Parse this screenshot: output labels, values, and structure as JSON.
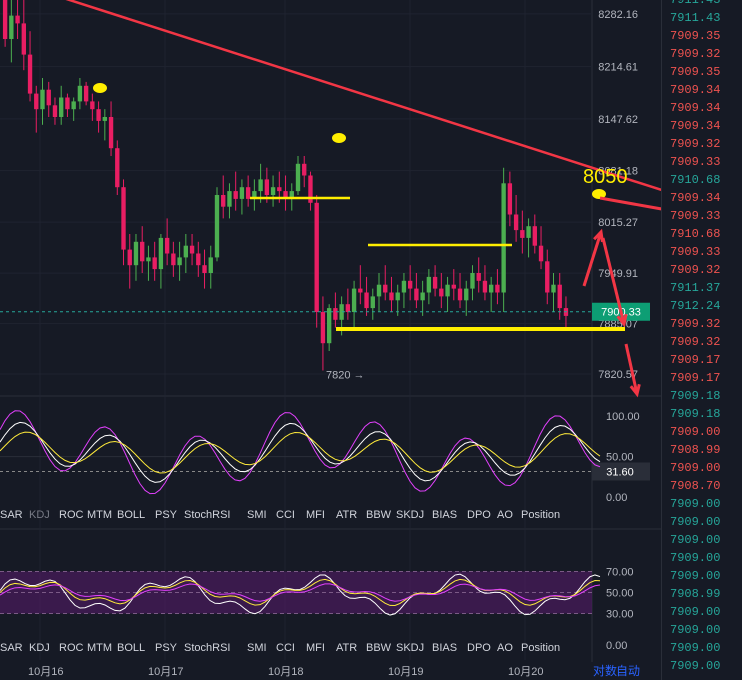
{
  "chart_data": {
    "type": "candlestick",
    "main": {
      "price_ticks": [
        "8282.16",
        "8214.61",
        "8147.62",
        "8081.18",
        "8015.27",
        "7949.91",
        "7885.07",
        "7820.57"
      ],
      "current_price_label": "7900.33",
      "low_marker_label": "7820 →",
      "annotation_text": "8050",
      "candles": [
        [
          8300,
          8320,
          8240,
          8250
        ],
        [
          8250,
          8300,
          8220,
          8280
        ],
        [
          8280,
          8320,
          8250,
          8270
        ],
        [
          8270,
          8300,
          8210,
          8230
        ],
        [
          8230,
          8260,
          8170,
          8180
        ],
        [
          8180,
          8190,
          8130,
          8160
        ],
        [
          8160,
          8200,
          8140,
          8185
        ],
        [
          8185,
          8195,
          8150,
          8165
        ],
        [
          8165,
          8175,
          8140,
          8150
        ],
        [
          8150,
          8190,
          8140,
          8175
        ],
        [
          8175,
          8180,
          8150,
          8160
        ],
        [
          8160,
          8175,
          8145,
          8170
        ],
        [
          8170,
          8200,
          8160,
          8190
        ],
        [
          8190,
          8195,
          8165,
          8170
        ],
        [
          8170,
          8180,
          8145,
          8160
        ],
        [
          8160,
          8170,
          8130,
          8145
        ],
        [
          8145,
          8160,
          8120,
          8150
        ],
        [
          8150,
          8170,
          8100,
          8110
        ],
        [
          8110,
          8120,
          8050,
          8060
        ],
        [
          8060,
          8070,
          7960,
          7980
        ],
        [
          7980,
          8000,
          7930,
          7960
        ],
        [
          7960,
          8000,
          7940,
          7990
        ],
        [
          7990,
          8010,
          7950,
          7965
        ],
        [
          7965,
          7985,
          7940,
          7970
        ],
        [
          7970,
          7990,
          7940,
          7955
        ],
        [
          7955,
          8000,
          7930,
          7995
        ],
        [
          7995,
          8020,
          7960,
          7975
        ],
        [
          7975,
          7990,
          7945,
          7960
        ],
        [
          7960,
          7990,
          7940,
          7970
        ],
        [
          7970,
          8000,
          7950,
          7985
        ],
        [
          7985,
          8000,
          7960,
          7975
        ],
        [
          7975,
          7990,
          7945,
          7960
        ],
        [
          7960,
          7980,
          7930,
          7950
        ],
        [
          7950,
          7985,
          7930,
          7970
        ],
        [
          7970,
          8060,
          7965,
          8050
        ],
        [
          8050,
          8075,
          8020,
          8035
        ],
        [
          8035,
          8065,
          8020,
          8055
        ],
        [
          8055,
          8080,
          8030,
          8045
        ],
        [
          8045,
          8070,
          8025,
          8060
        ],
        [
          8060,
          8075,
          8035,
          8045
        ],
        [
          8045,
          8070,
          8030,
          8055
        ],
        [
          8055,
          8090,
          8040,
          8070
        ],
        [
          8070,
          8085,
          8040,
          8050
        ],
        [
          8050,
          8075,
          8035,
          8060
        ],
        [
          8060,
          8080,
          8040,
          8055
        ],
        [
          8055,
          8075,
          8030,
          8045
        ],
        [
          8045,
          8065,
          8030,
          8055
        ],
        [
          8055,
          8100,
          8050,
          8090
        ],
        [
          8090,
          8100,
          8060,
          8075
        ],
        [
          8075,
          8080,
          8030,
          8040
        ],
        [
          8040,
          8050,
          7880,
          7900
        ],
        [
          7900,
          7920,
          7825,
          7860
        ],
        [
          7860,
          7910,
          7850,
          7905
        ],
        [
          7905,
          7925,
          7880,
          7890
        ],
        [
          7890,
          7920,
          7870,
          7910
        ],
        [
          7910,
          7930,
          7890,
          7900
        ],
        [
          7900,
          7940,
          7880,
          7930
        ],
        [
          7930,
          7960,
          7910,
          7925
        ],
        [
          7925,
          7945,
          7895,
          7905
        ],
        [
          7905,
          7930,
          7890,
          7920
        ],
        [
          7920,
          7950,
          7900,
          7935
        ],
        [
          7935,
          7960,
          7915,
          7925
        ],
        [
          7925,
          7945,
          7900,
          7915
        ],
        [
          7915,
          7935,
          7895,
          7925
        ],
        [
          7925,
          7950,
          7905,
          7940
        ],
        [
          7940,
          7960,
          7915,
          7930
        ],
        [
          7930,
          7950,
          7905,
          7915
        ],
        [
          7915,
          7940,
          7895,
          7925
        ],
        [
          7925,
          7955,
          7910,
          7945
        ],
        [
          7945,
          7960,
          7920,
          7930
        ],
        [
          7930,
          7950,
          7905,
          7920
        ],
        [
          7920,
          7945,
          7900,
          7935
        ],
        [
          7935,
          7955,
          7915,
          7930
        ],
        [
          7930,
          7950,
          7905,
          7915
        ],
        [
          7915,
          7940,
          7895,
          7930
        ],
        [
          7930,
          7960,
          7915,
          7950
        ],
        [
          7950,
          7970,
          7925,
          7940
        ],
        [
          7940,
          7960,
          7915,
          7925
        ],
        [
          7925,
          7945,
          7900,
          7935
        ],
        [
          7935,
          7955,
          7910,
          7925
        ],
        [
          7925,
          8085,
          7900,
          8065
        ],
        [
          8065,
          8080,
          8010,
          8025
        ],
        [
          8025,
          8050,
          7990,
          8005
        ],
        [
          8005,
          8030,
          7975,
          7995
        ],
        [
          7995,
          8020,
          7970,
          8010
        ],
        [
          8010,
          8025,
          7975,
          7985
        ],
        [
          7985,
          8010,
          7955,
          7965
        ],
        [
          7965,
          7980,
          7910,
          7925
        ],
        [
          7925,
          7950,
          7900,
          7935
        ],
        [
          7935,
          7950,
          7890,
          7905
        ],
        [
          7905,
          7920,
          7880,
          7895
        ]
      ],
      "trendline_points": [
        [
          2,
          8195
        ],
        [
          44,
          8140
        ],
        [
          86,
          8050
        ]
      ]
    },
    "kdj": {
      "ticks": [
        "100.00",
        "50.00",
        "0.00"
      ],
      "current_value": "31.60"
    },
    "rsi": {
      "ticks": [
        "70.00",
        "50.00",
        "30.00",
        "0.00"
      ]
    },
    "indicator_tabs": [
      "SAR",
      "KDJ",
      "ROC",
      "MTM",
      "BOLL",
      "PSY",
      "StochRSI",
      "SMI",
      "CCI",
      "MFI",
      "ATR",
      "BBW",
      "SKDJ",
      "BIAS",
      "DPO",
      "AO",
      "Position"
    ],
    "date_labels": [
      "10月16",
      "10月17",
      "10月18",
      "10月19",
      "10月20"
    ],
    "bottom_buttons": [
      "对数",
      "自动"
    ]
  },
  "trade_tape": [
    {
      "price": "7911.43",
      "color": "#26a69a"
    },
    {
      "price": "7911.43",
      "color": "#26a69a"
    },
    {
      "price": "7909.35",
      "color": "#ef5350"
    },
    {
      "price": "7909.32",
      "color": "#ef5350"
    },
    {
      "price": "7909.35",
      "color": "#ef5350"
    },
    {
      "price": "7909.34",
      "color": "#ef5350"
    },
    {
      "price": "7909.34",
      "color": "#ef5350"
    },
    {
      "price": "7909.34",
      "color": "#ef5350"
    },
    {
      "price": "7909.32",
      "color": "#ef5350"
    },
    {
      "price": "7909.33",
      "color": "#ef5350"
    },
    {
      "price": "7910.68",
      "color": "#26a69a"
    },
    {
      "price": "7909.34",
      "color": "#ef5350"
    },
    {
      "price": "7909.33",
      "color": "#ef5350"
    },
    {
      "price": "7910.68",
      "color": "#ef5350"
    },
    {
      "price": "7909.33",
      "color": "#ef5350"
    },
    {
      "price": "7909.32",
      "color": "#ef5350"
    },
    {
      "price": "7911.37",
      "color": "#26a69a"
    },
    {
      "price": "7912.24",
      "color": "#26a69a"
    },
    {
      "price": "7909.32",
      "color": "#ef5350"
    },
    {
      "price": "7909.32",
      "color": "#ef5350"
    },
    {
      "price": "7909.17",
      "color": "#ef5350"
    },
    {
      "price": "7909.17",
      "color": "#ef5350"
    },
    {
      "price": "7909.18",
      "color": "#26a69a"
    },
    {
      "price": "7909.18",
      "color": "#26a69a"
    },
    {
      "price": "7909.00",
      "color": "#ef5350"
    },
    {
      "price": "7908.99",
      "color": "#ef5350"
    },
    {
      "price": "7909.00",
      "color": "#ef5350"
    },
    {
      "price": "7908.70",
      "color": "#ef5350"
    },
    {
      "price": "7909.00",
      "color": "#26a69a"
    },
    {
      "price": "7909.00",
      "color": "#26a69a"
    },
    {
      "price": "7909.00",
      "color": "#26a69a"
    },
    {
      "price": "7909.00",
      "color": "#26a69a"
    },
    {
      "price": "7909.00",
      "color": "#26a69a"
    },
    {
      "price": "7908.99",
      "color": "#26a69a"
    },
    {
      "price": "7909.00",
      "color": "#26a69a"
    },
    {
      "price": "7909.00",
      "color": "#26a69a"
    },
    {
      "price": "7909.00",
      "color": "#26a69a"
    },
    {
      "price": "7909.00",
      "color": "#26a69a"
    }
  ]
}
